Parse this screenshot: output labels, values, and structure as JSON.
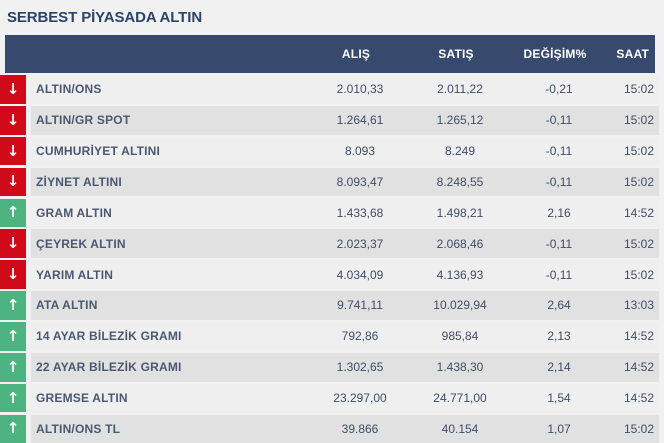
{
  "title": "SERBEST PİYASADA ALTIN",
  "icons": {
    "up": "↑",
    "down": "↓"
  },
  "colors": {
    "header_bg": "#37496d",
    "title_text": "#2b4469",
    "up_green": "#4cb381",
    "down_red": "#d10a1a",
    "row_odd": "#efefef",
    "row_even": "#e1e1e1"
  },
  "table": {
    "columns": [
      "ALIŞ",
      "SATIŞ",
      "DEĞİŞİM%",
      "SAAT"
    ],
    "rows": [
      {
        "name": "ALTIN/ONS",
        "direction": "down",
        "alis": "2.010,33",
        "satis": "2.011,22",
        "degisim": "-0,21",
        "saat": "15:02"
      },
      {
        "name": "ALTIN/GR SPOT",
        "direction": "down",
        "alis": "1.264,61",
        "satis": "1.265,12",
        "degisim": "-0,11",
        "saat": "15:02"
      },
      {
        "name": "CUMHURİYET ALTINI",
        "direction": "down",
        "alis": "8.093",
        "satis": "8.249",
        "degisim": "-0,11",
        "saat": "15:02"
      },
      {
        "name": "ZİYNET ALTINI",
        "direction": "down",
        "alis": "8.093,47",
        "satis": "8.248,55",
        "degisim": "-0,11",
        "saat": "15:02"
      },
      {
        "name": "GRAM ALTIN",
        "direction": "up",
        "alis": "1.433,68",
        "satis": "1.498,21",
        "degisim": "2,16",
        "saat": "14:52"
      },
      {
        "name": "ÇEYREK ALTIN",
        "direction": "down",
        "alis": "2.023,37",
        "satis": "2.068,46",
        "degisim": "-0,11",
        "saat": "15:02"
      },
      {
        "name": "YARIM ALTIN",
        "direction": "down",
        "alis": "4.034,09",
        "satis": "4.136,93",
        "degisim": "-0,11",
        "saat": "15:02"
      },
      {
        "name": "ATA ALTIN",
        "direction": "up",
        "alis": "9.741,11",
        "satis": "10.029,94",
        "degisim": "2,64",
        "saat": "13:03"
      },
      {
        "name": "14 AYAR BİLEZİK GRAMI",
        "direction": "up",
        "alis": "792,86",
        "satis": "985,84",
        "degisim": "2,13",
        "saat": "14:52"
      },
      {
        "name": "22 AYAR BİLEZİK GRAMI",
        "direction": "up",
        "alis": "1.302,65",
        "satis": "1.438,30",
        "degisim": "2,14",
        "saat": "14:52"
      },
      {
        "name": "GREMSE ALTIN",
        "direction": "up",
        "alis": "23.297,00",
        "satis": "24.771,00",
        "degisim": "1,54",
        "saat": "14:52"
      },
      {
        "name": "ALTIN/ONS TL",
        "direction": "up",
        "alis": "39.866",
        "satis": "40.154",
        "degisim": "1,07",
        "saat": "15:02"
      }
    ]
  }
}
